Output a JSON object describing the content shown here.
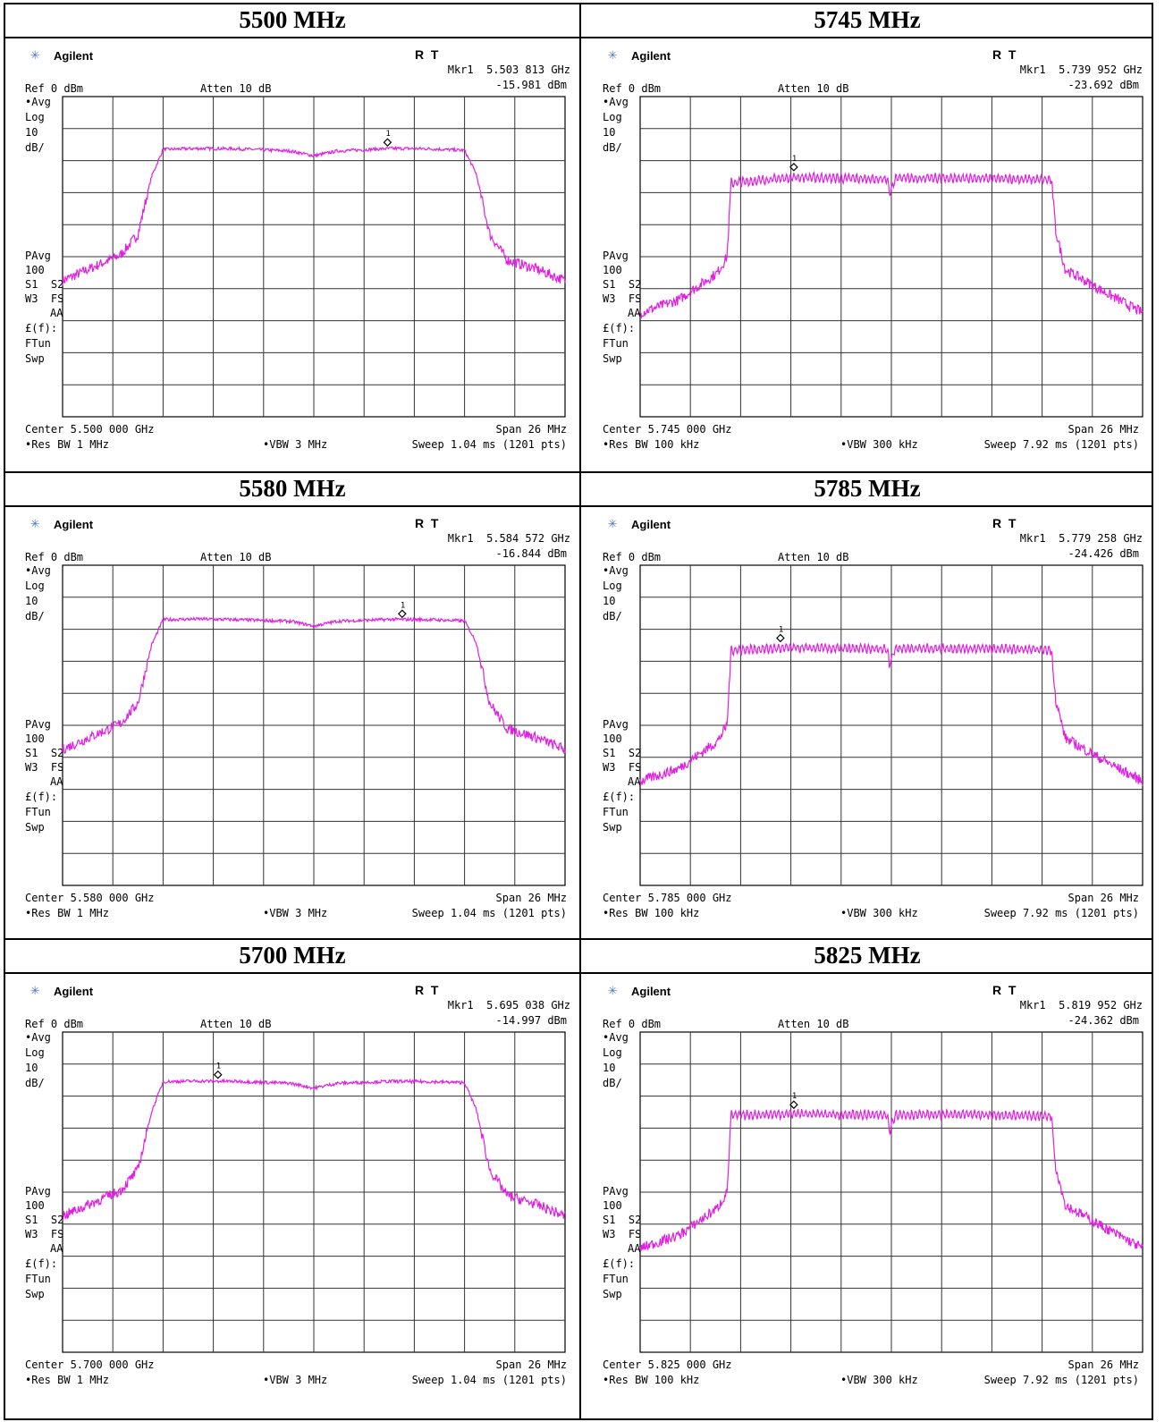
{
  "panels": [
    {
      "title": "5500 MHz",
      "brand": "Agilent",
      "rt": "R  T",
      "mkr_freq": "Mkr1  5.503 813 GHz",
      "mkr_amp": "-15.981 dBm",
      "ref": "Ref 0 dBm",
      "atten": "Atten 10 dB",
      "left_labels": [
        "•Avg",
        "Log",
        "10",
        "dB/",
        "PAvg",
        "100",
        "S1  S2",
        "W3  FS",
        "AA",
        "£(f):",
        "FTun",
        "Swp"
      ],
      "center": "Center 5.500 000 GHz",
      "span": "Span 26 MHz",
      "res_bw": "•Res BW 1 MHz",
      "vbw": "•VBW 3 MHz",
      "sweep": "Sweep 1.04 ms (1201 pts)",
      "marker_label": "1",
      "chart_data": {
        "type": "line",
        "xlabel": "",
        "ylabel": "",
        "xlim": [
          5487,
          5513
        ],
        "ylim": [
          -100,
          0
        ],
        "grid": true,
        "series": [
          {
            "x": [
              5487.0,
              5488.5,
              5490.0,
              5490.9,
              5491.6,
              5492.2,
              5494.0,
              5496.0,
              5498.8,
              5500.0,
              5501.2,
              5504.0,
              5506.0,
              5507.8,
              5508.4,
              5509.1,
              5510.0,
              5511.5,
              5513.0
            ],
            "y": [
              -57.5,
              -53.5,
              -49.5,
              -43.0,
              -25.0,
              -16.5,
              -16.2,
              -16.3,
              -17.0,
              -18.5,
              -17.0,
              -16.2,
              -16.3,
              -16.8,
              -24.0,
              -43.0,
              -51.0,
              -53.8,
              -57.5
            ]
          }
        ],
        "marker": {
          "x": 5503.813,
          "y": -15.981
        }
      }
    },
    {
      "title": "5745 MHz",
      "brand": "Agilent",
      "rt": "R  T",
      "mkr_freq": "Mkr1  5.739 952 GHz",
      "mkr_amp": "-23.692 dBm",
      "ref": "Ref 0 dBm",
      "atten": "Atten 10 dB",
      "left_labels": [
        "•Avg",
        "Log",
        "10",
        "dB/",
        "PAvg",
        "100",
        "S1  S2",
        "W3  FS",
        "AA",
        "£(f):",
        "FTun",
        "Swp"
      ],
      "center": "Center 5.745 000 GHz",
      "span": "Span 26 MHz",
      "res_bw": "•Res BW 100 kHz",
      "vbw": "•VBW 300 kHz",
      "sweep": "Sweep 7.92 ms (1201 pts)",
      "marker_label": "1",
      "chart_data": {
        "type": "line",
        "xlabel": "",
        "ylabel": "",
        "xlim": [
          5732,
          5758
        ],
        "ylim": [
          -100,
          0
        ],
        "grid": true,
        "series": [
          {
            "x": [
              5732.0,
              5734.0,
              5736.0,
              5736.5,
              5736.7,
              5740.0,
              5744.8,
              5744.9,
              5745.0,
              5745.2,
              5749.5,
              5753.3,
              5753.5,
              5754.0,
              5756.0,
              5758.0
            ],
            "y": [
              -67.5,
              -63.5,
              -55.0,
              -50.0,
              -27.0,
              -25.2,
              -25.8,
              -31.0,
              -29.0,
              -25.5,
              -25.5,
              -26.0,
              -42.0,
              -54.0,
              -61.0,
              -67.5
            ]
          }
        ],
        "marker": {
          "x": 5739.952,
          "y": -23.692
        }
      }
    },
    {
      "title": "5580 MHz",
      "brand": "Agilent",
      "rt": "R  T",
      "mkr_freq": "Mkr1  5.584 572 GHz",
      "mkr_amp": "-16.844 dBm",
      "ref": "Ref 0 dBm",
      "atten": "Atten 10 dB",
      "left_labels": [
        "•Avg",
        "Log",
        "10",
        "dB/",
        "PAvg",
        "100",
        "S1  S2",
        "W3  FS",
        "AA",
        "£(f):",
        "FTun",
        "Swp"
      ],
      "center": "Center 5.580 000 GHz",
      "span": "Span 26 MHz",
      "res_bw": "•Res BW 1 MHz",
      "vbw": "•VBW 3 MHz",
      "sweep": "Sweep 1.04 ms (1201 pts)",
      "marker_label": "1",
      "chart_data": {
        "type": "line",
        "xlabel": "",
        "ylabel": "",
        "xlim": [
          5567,
          5593
        ],
        "ylim": [
          -100,
          0
        ],
        "grid": true,
        "series": [
          {
            "x": [
              5567.0,
              5568.5,
              5570.0,
              5570.9,
              5571.6,
              5572.2,
              5574.0,
              5576.0,
              5578.8,
              5580.0,
              5581.2,
              5584.0,
              5586.0,
              5587.8,
              5588.4,
              5589.1,
              5590.0,
              5591.5,
              5593.0
            ],
            "y": [
              -57.5,
              -53.5,
              -49.5,
              -43.0,
              -25.0,
              -17.0,
              -16.8,
              -17.0,
              -17.5,
              -19.0,
              -17.5,
              -16.9,
              -17.0,
              -17.4,
              -24.0,
              -43.0,
              -51.0,
              -53.8,
              -57.5
            ]
          }
        ],
        "marker": {
          "x": 5584.572,
          "y": -16.844
        }
      }
    },
    {
      "title": "5785 MHz",
      "brand": "Agilent",
      "rt": "R  T",
      "mkr_freq": "Mkr1  5.779 258 GHz",
      "mkr_amp": "-24.426 dBm",
      "ref": "Ref 0 dBm",
      "atten": "Atten 10 dB",
      "left_labels": [
        "•Avg",
        "Log",
        "10",
        "dB/",
        "PAvg",
        "100",
        "S1  S2",
        "W3  FS",
        "AA",
        "£(f):",
        "FTun",
        "Swp"
      ],
      "center": "Center 5.785 000 GHz",
      "span": "Span 26 MHz",
      "res_bw": "•Res BW 100 kHz",
      "vbw": "•VBW 300 kHz",
      "sweep": "Sweep 7.92 ms (1201 pts)",
      "marker_label": "1",
      "chart_data": {
        "type": "line",
        "xlabel": "",
        "ylabel": "",
        "xlim": [
          5772,
          5798
        ],
        "ylim": [
          -100,
          0
        ],
        "grid": true,
        "series": [
          {
            "x": [
              5772.0,
              5774.0,
              5776.0,
              5776.5,
              5776.7,
              5780.0,
              5784.8,
              5784.9,
              5785.0,
              5785.2,
              5789.5,
              5793.3,
              5793.5,
              5794.0,
              5796.0,
              5798.0
            ],
            "y": [
              -67.5,
              -63.5,
              -55.0,
              -50.0,
              -26.5,
              -25.8,
              -26.2,
              -31.0,
              -29.5,
              -26.0,
              -26.0,
              -26.5,
              -42.0,
              -54.0,
              -61.0,
              -67.5
            ]
          }
        ],
        "marker": {
          "x": 5779.258,
          "y": -24.426
        }
      }
    },
    {
      "title": "5700 MHz",
      "brand": "Agilent",
      "rt": "R  T",
      "mkr_freq": "Mkr1  5.695 038 GHz",
      "mkr_amp": "-14.997 dBm",
      "ref": "Ref 0 dBm",
      "atten": "Atten 10 dB",
      "left_labels": [
        "•Avg",
        "Log",
        "10",
        "dB/",
        "PAvg",
        "100",
        "S1  S2",
        "W3  FS",
        "AA",
        "£(f):",
        "FTun",
        "Swp"
      ],
      "center": "Center 5.700 000 GHz",
      "span": "Span 26 MHz",
      "res_bw": "•Res BW 1 MHz",
      "vbw": "•VBW 3 MHz",
      "sweep": "Sweep 1.04 ms (1201 pts)",
      "marker_label": "1",
      "chart_data": {
        "type": "line",
        "xlabel": "",
        "ylabel": "",
        "xlim": [
          5687,
          5713
        ],
        "ylim": [
          -100,
          0
        ],
        "grid": true,
        "series": [
          {
            "x": [
              5687.0,
              5688.5,
              5690.0,
              5690.9,
              5691.6,
              5692.2,
              5694.0,
              5696.0,
              5698.8,
              5700.0,
              5701.2,
              5704.0,
              5706.0,
              5707.8,
              5708.4,
              5709.1,
              5710.0,
              5711.5,
              5713.0
            ],
            "y": [
              -57.5,
              -53.5,
              -49.5,
              -43.0,
              -25.0,
              -15.5,
              -15.3,
              -15.4,
              -16.0,
              -17.5,
              -16.0,
              -15.4,
              -15.5,
              -15.8,
              -24.0,
              -43.0,
              -51.0,
              -53.8,
              -57.5
            ]
          }
        ],
        "marker": {
          "x": 5695.038,
          "y": -14.997
        }
      }
    },
    {
      "title": "5825 MHz",
      "brand": "Agilent",
      "rt": "R  T",
      "mkr_freq": "Mkr1  5.819 952 GHz",
      "mkr_amp": "-24.362 dBm",
      "ref": "Ref 0 dBm",
      "atten": "Atten 10 dB",
      "left_labels": [
        "•Avg",
        "Log",
        "10",
        "dB/",
        "PAvg",
        "100",
        "S1  S2",
        "W3  FS",
        "AA",
        "£(f):",
        "FTun",
        "Swp"
      ],
      "center": "Center 5.825 000 GHz",
      "span": "Span 26 MHz",
      "res_bw": "•Res BW 100 kHz",
      "vbw": "•VBW 300 kHz",
      "sweep": "Sweep 7.92 ms (1201 pts)",
      "marker_label": "1",
      "chart_data": {
        "type": "line",
        "xlabel": "",
        "ylabel": "",
        "xlim": [
          5812,
          5838
        ],
        "ylim": [
          -100,
          0
        ],
        "grid": true,
        "series": [
          {
            "x": [
              5812.0,
              5814.0,
              5816.0,
              5816.5,
              5816.7,
              5820.0,
              5824.8,
              5824.9,
              5825.0,
              5825.2,
              5829.5,
              5833.3,
              5833.5,
              5834.0,
              5836.0,
              5838.0
            ],
            "y": [
              -67.5,
              -63.5,
              -55.0,
              -50.0,
              -26.0,
              -25.5,
              -26.0,
              -31.0,
              -29.0,
              -25.8,
              -25.8,
              -26.2,
              -42.0,
              -54.0,
              -61.0,
              -67.5
            ]
          }
        ],
        "marker": {
          "x": 5819.952,
          "y": -24.362
        }
      }
    }
  ],
  "colors": {
    "trace": "#e020e0",
    "grid": "#333333",
    "star": "#4a78c8",
    "frame": "#000000"
  }
}
